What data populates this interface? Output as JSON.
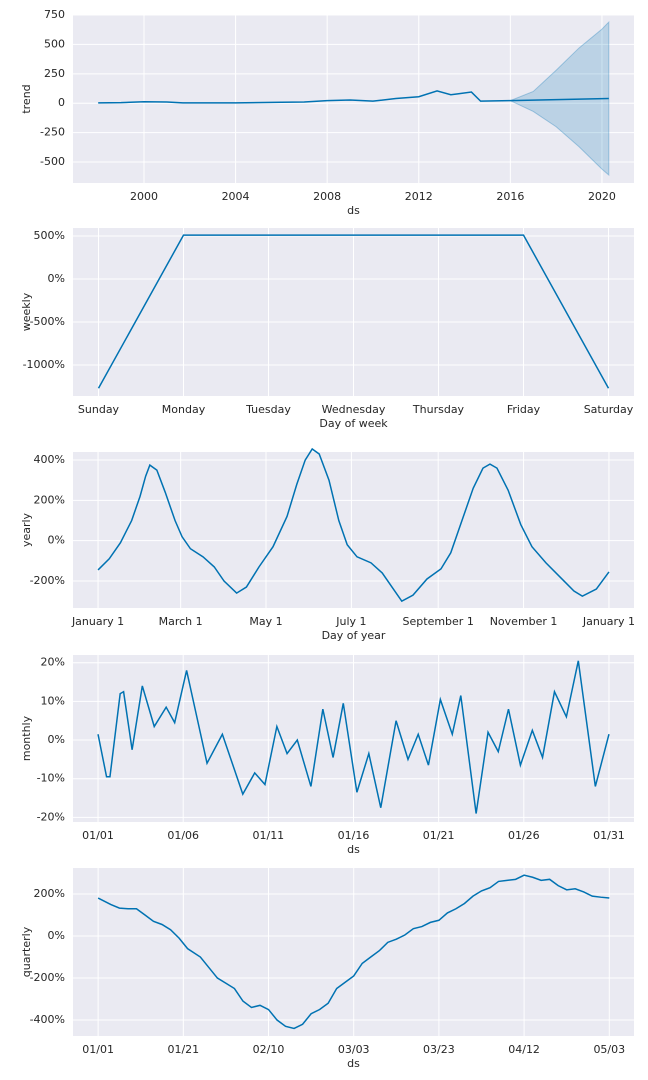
{
  "chart_data": [
    {
      "type": "line",
      "ylabel": "trend",
      "xlabel": "ds",
      "color": "#0072B2",
      "x": [
        1998,
        1999,
        2000,
        2001,
        2001.7,
        2004,
        2006,
        2007,
        2008,
        2009,
        2010,
        2011,
        2012,
        2012.8,
        2013.4,
        2013.7,
        2014.3,
        2014.7,
        2016,
        2020.3
      ],
      "values": [
        3,
        5,
        13,
        10,
        3,
        3,
        8,
        10,
        22,
        27,
        18,
        40,
        55,
        105,
        72,
        80,
        95,
        18,
        22,
        40
      ],
      "band": {
        "color": "#0072B2",
        "x": [
          2016,
          2017,
          2018,
          2019,
          2020,
          2020.3
        ],
        "upper": [
          22,
          100,
          280,
          470,
          630,
          690
        ],
        "lower": [
          22,
          -70,
          -200,
          -370,
          -560,
          -610
        ]
      },
      "xlim": [
        1996.9,
        2021.4
      ],
      "xticks": [
        2000,
        2004,
        2008,
        2012,
        2016,
        2020
      ],
      "ylim": [
        -678,
        750
      ],
      "yticks": [
        750,
        500,
        250,
        0,
        -250,
        -500
      ],
      "grid": true
    },
    {
      "type": "line",
      "ylabel": "weekly",
      "xlabel": "Day of week",
      "color": "#0072B2",
      "categories": [
        "Sunday",
        "Monday",
        "Tuesday",
        "Wednesday",
        "Thursday",
        "Friday",
        "Saturday"
      ],
      "values": [
        -1270,
        510,
        510,
        510,
        510,
        510,
        -1270
      ],
      "ylim": [
        -1360,
        593
      ],
      "yticks": [
        {
          "value": 500,
          "label": "500%"
        },
        {
          "value": 0,
          "label": "0%"
        },
        {
          "value": -500,
          "label": "-500%"
        },
        {
          "value": -1000,
          "label": "-1000%"
        }
      ],
      "grid": true
    },
    {
      "type": "line",
      "ylabel": "yearly",
      "xlabel": "Day of year",
      "color": "#0072B2",
      "x": [
        0,
        8,
        16,
        24,
        30,
        34,
        37,
        42,
        48,
        55,
        60,
        66,
        75,
        83,
        90,
        99,
        106,
        115,
        125,
        135,
        142,
        148,
        153,
        158,
        165,
        172,
        178,
        185,
        195,
        203,
        210,
        217,
        225,
        235,
        245,
        252,
        260,
        268,
        275,
        280,
        285,
        293,
        302,
        310,
        320,
        330,
        340,
        346,
        356,
        365
      ],
      "values": [
        -145,
        -90,
        -10,
        100,
        220,
        320,
        375,
        350,
        240,
        100,
        20,
        -40,
        -80,
        -130,
        -200,
        -260,
        -230,
        -130,
        -30,
        120,
        280,
        400,
        455,
        430,
        300,
        100,
        -20,
        -80,
        -110,
        -160,
        -230,
        -300,
        -270,
        -190,
        -140,
        -60,
        100,
        260,
        360,
        380,
        360,
        250,
        80,
        -30,
        -110,
        -180,
        -250,
        -275,
        -240,
        -155
      ],
      "xlim": [
        -17.9,
        382.9
      ],
      "xticks": [
        {
          "value": 0,
          "label": "January 1"
        },
        {
          "value": 59,
          "label": "March 1"
        },
        {
          "value": 120,
          "label": "May 1"
        },
        {
          "value": 181,
          "label": "July 1"
        },
        {
          "value": 243,
          "label": "September 1"
        },
        {
          "value": 304,
          "label": "November 1"
        },
        {
          "value": 365,
          "label": "January 1"
        }
      ],
      "ylim": [
        -334,
        440
      ],
      "yticks": [
        {
          "value": 400,
          "label": "400%"
        },
        {
          "value": 200,
          "label": "200%"
        },
        {
          "value": 0,
          "label": "0%"
        },
        {
          "value": -200,
          "label": "-200%"
        }
      ],
      "grid": true
    },
    {
      "type": "line",
      "ylabel": "monthly",
      "xlabel": "ds",
      "color": "#0072B2",
      "x": [
        0,
        0.5,
        0.7,
        1.3,
        1.5,
        2.0,
        2.6,
        3.3,
        4.0,
        4.5,
        5.2,
        5.6,
        6.4,
        7.3,
        8.5,
        9.2,
        9.8,
        10.5,
        11.1,
        11.7,
        12.5,
        13.2,
        13.8,
        14.4,
        15.2,
        15.9,
        16.6,
        17.5,
        18.2,
        18.8,
        19.4,
        20.1,
        20.8,
        21.3,
        22.2,
        22.9,
        23.5,
        24.1,
        24.8,
        25.5,
        26.1,
        26.8,
        27.5,
        28.2,
        29.2,
        30
      ],
      "values": [
        1.5,
        -9.5,
        -9.5,
        12,
        12.5,
        -2.5,
        14,
        3.5,
        8.5,
        4.5,
        18,
        10,
        -6,
        1.5,
        -14,
        -8.5,
        -11.5,
        3.5,
        -3.5,
        0,
        -12,
        8,
        -4.5,
        9.5,
        -13.5,
        -3.5,
        -17.5,
        5,
        -5,
        1.5,
        -6.5,
        10.5,
        1.5,
        11.5,
        -19,
        2,
        -3,
        8,
        -6.5,
        2.5,
        -4.5,
        12.5,
        6,
        20.5,
        -12,
        1.5
      ],
      "xlim": [
        -1.47,
        31.47
      ],
      "xticks": [
        {
          "value": 0,
          "label": "01/01"
        },
        {
          "value": 5,
          "label": "01/06"
        },
        {
          "value": 10,
          "label": "01/11"
        },
        {
          "value": 15,
          "label": "01/16"
        },
        {
          "value": 20,
          "label": "01/21"
        },
        {
          "value": 25,
          "label": "01/26"
        },
        {
          "value": 30,
          "label": "01/31"
        }
      ],
      "ylim": [
        -21.2,
        22
      ],
      "yticks": [
        {
          "value": 20,
          "label": "20%"
        },
        {
          "value": 10,
          "label": "10%"
        },
        {
          "value": 0,
          "label": "0%"
        },
        {
          "value": -10,
          "label": "-10%"
        },
        {
          "value": -20,
          "label": "-20%"
        }
      ],
      "grid": true
    },
    {
      "type": "line",
      "ylabel": "quarterly",
      "xlabel": "ds",
      "color": "#0072B2",
      "x": [
        0,
        3,
        5,
        7,
        9,
        11,
        13,
        15,
        17,
        19,
        21,
        24,
        26,
        28,
        30,
        32,
        34,
        36,
        38,
        40,
        42,
        44,
        46,
        48,
        50,
        52,
        54,
        56,
        58,
        60,
        62,
        64,
        66,
        68,
        70,
        72,
        74,
        76,
        78,
        80,
        82,
        84,
        86,
        88,
        90,
        92,
        94,
        96,
        98,
        100,
        102,
        104,
        106,
        108,
        110,
        112,
        114,
        116,
        118,
        120
      ],
      "values": [
        181,
        150,
        133,
        130,
        130,
        100,
        70,
        55,
        30,
        -10,
        -60,
        -100,
        -150,
        -200,
        -225,
        -250,
        -310,
        -340,
        -330,
        -350,
        -400,
        -430,
        -440,
        -420,
        -370,
        -350,
        -320,
        -250,
        -220,
        -190,
        -130,
        -100,
        -70,
        -30,
        -15,
        5,
        35,
        45,
        65,
        75,
        110,
        130,
        155,
        190,
        215,
        230,
        260,
        265,
        270,
        290,
        280,
        265,
        270,
        240,
        220,
        225,
        210,
        190,
        185,
        181
      ],
      "xlim": [
        -5.9,
        125.8
      ],
      "xticks": [
        {
          "value": 0,
          "label": "01/01"
        },
        {
          "value": 20,
          "label": "01/21"
        },
        {
          "value": 40,
          "label": "02/10"
        },
        {
          "value": 60,
          "label": "03/03"
        },
        {
          "value": 80,
          "label": "03/23"
        },
        {
          "value": 100,
          "label": "04/12"
        },
        {
          "value": 120,
          "label": "05/03"
        }
      ],
      "ylim": [
        -476,
        324
      ],
      "yticks": [
        {
          "value": 200,
          "label": "200%"
        },
        {
          "value": 0,
          "label": "0%"
        },
        {
          "value": -200,
          "label": "-200%"
        },
        {
          "value": -400,
          "label": "-400%"
        }
      ],
      "grid": true
    }
  ]
}
